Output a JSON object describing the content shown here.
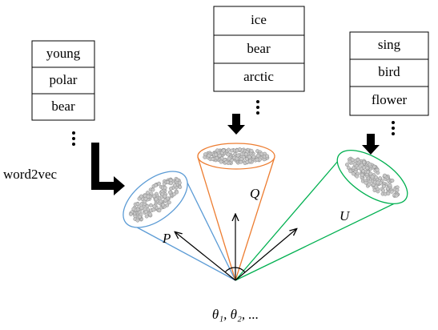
{
  "lists": [
    {
      "words": [
        "young",
        "polar",
        "bear"
      ]
    },
    {
      "words": [
        "ice",
        "bear",
        "arctic"
      ]
    },
    {
      "words": [
        "sing",
        "bird",
        "flower"
      ]
    }
  ],
  "embedding_label": "word2vec",
  "cones": [
    {
      "label": "P"
    },
    {
      "label": "Q"
    },
    {
      "label": "U"
    }
  ],
  "parameter_label": "θ₁, θ₂, ..."
}
